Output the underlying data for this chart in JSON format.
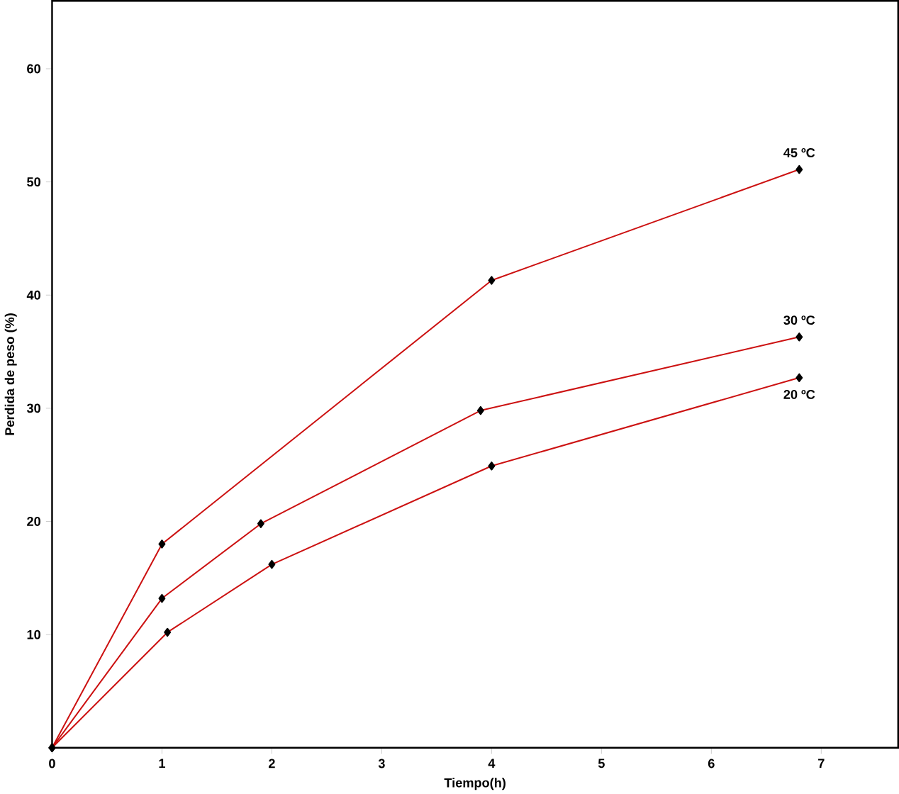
{
  "chart_data": {
    "type": "line",
    "xlabel": "Tiempo(h)",
    "ylabel": "Perdida de peso (%)",
    "xlim": [
      0,
      7.7
    ],
    "ylim": [
      0,
      66
    ],
    "xticks": [
      0,
      1,
      2,
      3,
      4,
      5,
      6,
      7
    ],
    "yticks": [
      10,
      20,
      30,
      40,
      50,
      60
    ],
    "marker": "diamond",
    "grid": false,
    "series": [
      {
        "name": "45 ºC",
        "color": "#cc1111",
        "x": [
          0,
          1,
          4,
          6.8
        ],
        "values": [
          0,
          18,
          41.3,
          51.1
        ]
      },
      {
        "name": "30 ºC",
        "color": "#cc1111",
        "x": [
          0,
          1,
          1.9,
          3.9,
          6.8
        ],
        "values": [
          0,
          13.2,
          19.8,
          29.8,
          36.3
        ]
      },
      {
        "name": "20 ºC",
        "color": "#cc1111",
        "x": [
          0,
          1.05,
          2,
          4,
          6.8
        ],
        "values": [
          0,
          10.2,
          16.2,
          24.9,
          32.7
        ]
      }
    ]
  }
}
